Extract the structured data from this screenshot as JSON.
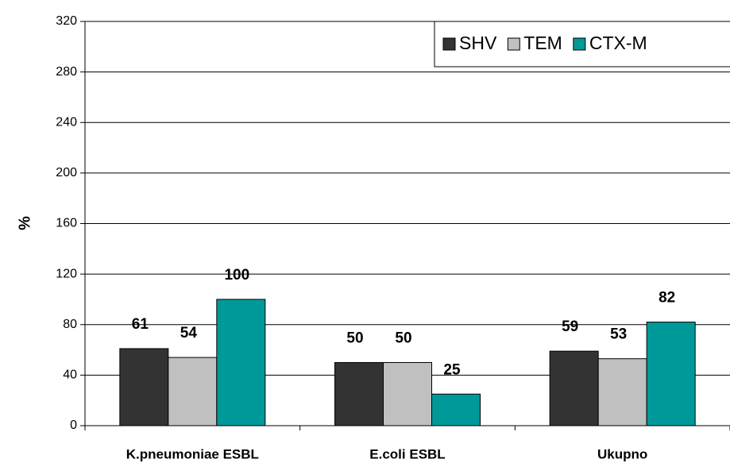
{
  "chart_data": {
    "type": "bar",
    "y_label": "%",
    "categories": [
      "K.pneumoniae ESBL",
      "E.coli ESBL",
      "Ukupno"
    ],
    "series": [
      {
        "name": "SHV",
        "color": "#333333",
        "values": [
          61,
          50,
          59
        ]
      },
      {
        "name": "TEM",
        "color": "#c0c0c0",
        "values": [
          54,
          50,
          53
        ]
      },
      {
        "name": "CTX-M",
        "color": "#009999",
        "values": [
          100,
          25,
          82
        ]
      }
    ],
    "ylim": [
      0,
      320
    ],
    "yticks": [
      0,
      40,
      80,
      120,
      160,
      200,
      240,
      280,
      320
    ],
    "grid": true,
    "legend": "top-right"
  }
}
